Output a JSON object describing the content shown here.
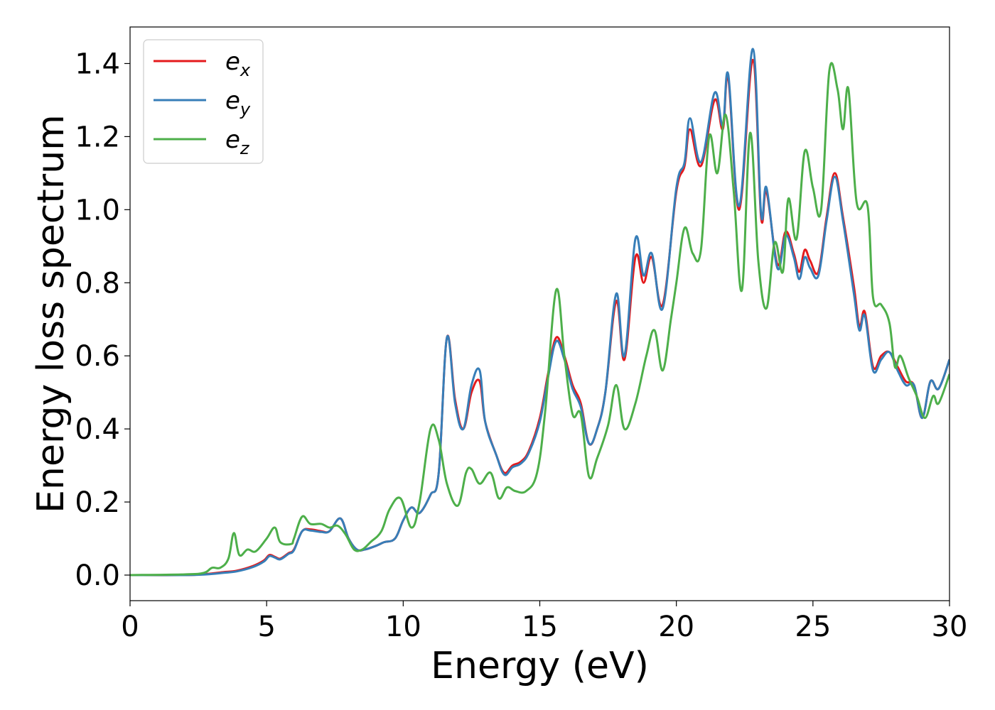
{
  "chart_data": {
    "type": "line",
    "xlabel": "Energy (eV)",
    "ylabel": "Energy loss spectrum",
    "xlim": [
      0,
      30
    ],
    "ylim": [
      -0.07,
      1.5
    ],
    "xticks": [
      0,
      5,
      10,
      15,
      20,
      25,
      30
    ],
    "xtick_labels": [
      "0",
      "5",
      "10",
      "15",
      "20",
      "25",
      "30"
    ],
    "yticks": [
      0.0,
      0.2,
      0.4,
      0.6,
      0.8,
      1.0,
      1.2,
      1.4
    ],
    "ytick_labels": [
      "0.0",
      "0.2",
      "0.4",
      "0.6",
      "0.8",
      "1.0",
      "1.2",
      "1.4"
    ],
    "grid": false,
    "legend_position": "top-left",
    "series": [
      {
        "name": "e",
        "subscript": "x",
        "color": "#e41a1c",
        "points": [
          [
            0,
            0
          ],
          [
            2,
            0
          ],
          [
            2.8,
            0.003
          ],
          [
            3.4,
            0.008
          ],
          [
            3.9,
            0.012
          ],
          [
            4.5,
            0.025
          ],
          [
            4.9,
            0.04
          ],
          [
            5.1,
            0.055
          ],
          [
            5.3,
            0.05
          ],
          [
            5.5,
            0.045
          ],
          [
            5.8,
            0.06
          ],
          [
            6.0,
            0.07
          ],
          [
            6.3,
            0.12
          ],
          [
            6.6,
            0.125
          ],
          [
            7.0,
            0.12
          ],
          [
            7.3,
            0.12
          ],
          [
            7.7,
            0.155
          ],
          [
            8.0,
            0.1
          ],
          [
            8.3,
            0.07
          ],
          [
            8.6,
            0.07
          ],
          [
            9.0,
            0.08
          ],
          [
            9.3,
            0.09
          ],
          [
            9.7,
            0.1
          ],
          [
            10.0,
            0.15
          ],
          [
            10.3,
            0.185
          ],
          [
            10.6,
            0.17
          ],
          [
            11.0,
            0.22
          ],
          [
            11.3,
            0.28
          ],
          [
            11.6,
            0.65
          ],
          [
            11.9,
            0.48
          ],
          [
            12.2,
            0.4
          ],
          [
            12.5,
            0.5
          ],
          [
            12.8,
            0.53
          ],
          [
            13.0,
            0.42
          ],
          [
            13.4,
            0.33
          ],
          [
            13.7,
            0.28
          ],
          [
            14.0,
            0.3
          ],
          [
            14.3,
            0.31
          ],
          [
            14.6,
            0.34
          ],
          [
            15.0,
            0.43
          ],
          [
            15.3,
            0.55
          ],
          [
            15.6,
            0.65
          ],
          [
            15.9,
            0.6
          ],
          [
            16.2,
            0.52
          ],
          [
            16.5,
            0.47
          ],
          [
            16.8,
            0.36
          ],
          [
            17.1,
            0.4
          ],
          [
            17.4,
            0.5
          ],
          [
            17.8,
            0.75
          ],
          [
            18.1,
            0.59
          ],
          [
            18.5,
            0.87
          ],
          [
            18.8,
            0.8
          ],
          [
            19.1,
            0.87
          ],
          [
            19.5,
            0.74
          ],
          [
            20.0,
            1.05
          ],
          [
            20.3,
            1.12
          ],
          [
            20.5,
            1.22
          ],
          [
            20.9,
            1.12
          ],
          [
            21.4,
            1.3
          ],
          [
            21.7,
            1.22
          ],
          [
            21.9,
            1.36
          ],
          [
            22.3,
            1.0
          ],
          [
            22.8,
            1.41
          ],
          [
            23.1,
            0.98
          ],
          [
            23.3,
            1.05
          ],
          [
            23.7,
            0.85
          ],
          [
            24.0,
            0.94
          ],
          [
            24.3,
            0.88
          ],
          [
            24.5,
            0.83
          ],
          [
            24.7,
            0.89
          ],
          [
            24.9,
            0.86
          ],
          [
            25.2,
            0.83
          ],
          [
            25.5,
            0.98
          ],
          [
            25.8,
            1.1
          ],
          [
            26.1,
            0.98
          ],
          [
            26.5,
            0.79
          ],
          [
            26.7,
            0.68
          ],
          [
            26.9,
            0.72
          ],
          [
            27.2,
            0.57
          ],
          [
            27.5,
            0.6
          ],
          [
            27.8,
            0.61
          ],
          [
            28.1,
            0.57
          ],
          [
            28.4,
            0.53
          ],
          [
            28.7,
            0.52
          ],
          [
            29.0,
            0.43
          ],
          [
            29.3,
            0.53
          ],
          [
            29.6,
            0.51
          ],
          [
            30.0,
            0.59
          ]
        ]
      },
      {
        "name": "e",
        "subscript": "y",
        "color": "#377eb8",
        "points": [
          [
            0,
            0
          ],
          [
            2,
            0
          ],
          [
            2.8,
            0.002
          ],
          [
            3.4,
            0.006
          ],
          [
            3.9,
            0.01
          ],
          [
            4.5,
            0.022
          ],
          [
            4.9,
            0.037
          ],
          [
            5.1,
            0.052
          ],
          [
            5.3,
            0.048
          ],
          [
            5.5,
            0.043
          ],
          [
            5.8,
            0.058
          ],
          [
            6.0,
            0.068
          ],
          [
            6.3,
            0.12
          ],
          [
            6.6,
            0.122
          ],
          [
            7.0,
            0.118
          ],
          [
            7.3,
            0.12
          ],
          [
            7.7,
            0.155
          ],
          [
            8.0,
            0.1
          ],
          [
            8.3,
            0.07
          ],
          [
            8.6,
            0.07
          ],
          [
            9.0,
            0.08
          ],
          [
            9.3,
            0.09
          ],
          [
            9.7,
            0.1
          ],
          [
            10.0,
            0.15
          ],
          [
            10.3,
            0.185
          ],
          [
            10.6,
            0.17
          ],
          [
            11.0,
            0.22
          ],
          [
            11.3,
            0.28
          ],
          [
            11.6,
            0.65
          ],
          [
            11.9,
            0.47
          ],
          [
            12.2,
            0.4
          ],
          [
            12.5,
            0.52
          ],
          [
            12.8,
            0.56
          ],
          [
            13.0,
            0.42
          ],
          [
            13.4,
            0.33
          ],
          [
            13.7,
            0.275
          ],
          [
            14.0,
            0.295
          ],
          [
            14.3,
            0.305
          ],
          [
            14.6,
            0.335
          ],
          [
            15.0,
            0.42
          ],
          [
            15.3,
            0.54
          ],
          [
            15.6,
            0.64
          ],
          [
            15.9,
            0.59
          ],
          [
            16.2,
            0.51
          ],
          [
            16.5,
            0.46
          ],
          [
            16.8,
            0.36
          ],
          [
            17.1,
            0.4
          ],
          [
            17.4,
            0.5
          ],
          [
            17.8,
            0.77
          ],
          [
            18.1,
            0.6
          ],
          [
            18.5,
            0.92
          ],
          [
            18.8,
            0.82
          ],
          [
            19.1,
            0.88
          ],
          [
            19.5,
            0.73
          ],
          [
            20.0,
            1.06
          ],
          [
            20.3,
            1.13
          ],
          [
            20.5,
            1.25
          ],
          [
            20.9,
            1.13
          ],
          [
            21.4,
            1.32
          ],
          [
            21.7,
            1.23
          ],
          [
            21.9,
            1.37
          ],
          [
            22.3,
            1.01
          ],
          [
            22.8,
            1.44
          ],
          [
            23.1,
            0.99
          ],
          [
            23.3,
            1.06
          ],
          [
            23.7,
            0.84
          ],
          [
            24.0,
            0.93
          ],
          [
            24.3,
            0.87
          ],
          [
            24.5,
            0.81
          ],
          [
            24.7,
            0.87
          ],
          [
            24.9,
            0.84
          ],
          [
            25.2,
            0.82
          ],
          [
            25.5,
            0.97
          ],
          [
            25.8,
            1.09
          ],
          [
            26.1,
            0.97
          ],
          [
            26.5,
            0.77
          ],
          [
            26.7,
            0.67
          ],
          [
            26.9,
            0.71
          ],
          [
            27.2,
            0.56
          ],
          [
            27.5,
            0.59
          ],
          [
            27.8,
            0.61
          ],
          [
            28.1,
            0.56
          ],
          [
            28.4,
            0.52
          ],
          [
            28.7,
            0.52
          ],
          [
            29.0,
            0.43
          ],
          [
            29.3,
            0.53
          ],
          [
            29.6,
            0.51
          ],
          [
            30.0,
            0.59
          ]
        ]
      },
      {
        "name": "e",
        "subscript": "z",
        "color": "#4daf4a",
        "points": [
          [
            0,
            0
          ],
          [
            2,
            0.002
          ],
          [
            2.7,
            0.006
          ],
          [
            3.0,
            0.02
          ],
          [
            3.3,
            0.02
          ],
          [
            3.6,
            0.045
          ],
          [
            3.8,
            0.115
          ],
          [
            4.0,
            0.055
          ],
          [
            4.3,
            0.07
          ],
          [
            4.6,
            0.065
          ],
          [
            5.0,
            0.1
          ],
          [
            5.3,
            0.13
          ],
          [
            5.5,
            0.09
          ],
          [
            5.9,
            0.085
          ],
          [
            6.0,
            0.1
          ],
          [
            6.3,
            0.16
          ],
          [
            6.6,
            0.14
          ],
          [
            7.0,
            0.14
          ],
          [
            7.3,
            0.13
          ],
          [
            7.6,
            0.135
          ],
          [
            7.9,
            0.11
          ],
          [
            8.2,
            0.07
          ],
          [
            8.5,
            0.07
          ],
          [
            8.8,
            0.09
          ],
          [
            9.2,
            0.12
          ],
          [
            9.5,
            0.18
          ],
          [
            9.9,
            0.21
          ],
          [
            10.3,
            0.13
          ],
          [
            10.6,
            0.2
          ],
          [
            11.0,
            0.4
          ],
          [
            11.3,
            0.37
          ],
          [
            11.6,
            0.25
          ],
          [
            12.0,
            0.19
          ],
          [
            12.3,
            0.28
          ],
          [
            12.5,
            0.29
          ],
          [
            12.8,
            0.25
          ],
          [
            13.2,
            0.28
          ],
          [
            13.5,
            0.21
          ],
          [
            13.8,
            0.24
          ],
          [
            14.1,
            0.23
          ],
          [
            14.5,
            0.23
          ],
          [
            14.9,
            0.28
          ],
          [
            15.2,
            0.45
          ],
          [
            15.6,
            0.78
          ],
          [
            15.9,
            0.6
          ],
          [
            16.2,
            0.44
          ],
          [
            16.5,
            0.44
          ],
          [
            16.8,
            0.27
          ],
          [
            17.1,
            0.32
          ],
          [
            17.5,
            0.41
          ],
          [
            17.8,
            0.52
          ],
          [
            18.1,
            0.4
          ],
          [
            18.5,
            0.47
          ],
          [
            18.9,
            0.6
          ],
          [
            19.2,
            0.67
          ],
          [
            19.5,
            0.56
          ],
          [
            19.8,
            0.7
          ],
          [
            20.0,
            0.8
          ],
          [
            20.3,
            0.95
          ],
          [
            20.6,
            0.88
          ],
          [
            20.9,
            0.89
          ],
          [
            21.2,
            1.2
          ],
          [
            21.5,
            1.1
          ],
          [
            21.8,
            1.26
          ],
          [
            22.1,
            1.05
          ],
          [
            22.4,
            0.78
          ],
          [
            22.7,
            1.21
          ],
          [
            23.0,
            0.86
          ],
          [
            23.3,
            0.73
          ],
          [
            23.6,
            0.91
          ],
          [
            23.9,
            0.83
          ],
          [
            24.1,
            1.03
          ],
          [
            24.4,
            0.92
          ],
          [
            24.7,
            1.16
          ],
          [
            25.0,
            1.06
          ],
          [
            25.3,
            1.0
          ],
          [
            25.6,
            1.38
          ],
          [
            25.9,
            1.33
          ],
          [
            26.1,
            1.22
          ],
          [
            26.3,
            1.33
          ],
          [
            26.6,
            1.02
          ],
          [
            27.0,
            1.01
          ],
          [
            27.2,
            0.76
          ],
          [
            27.5,
            0.74
          ],
          [
            27.8,
            0.69
          ],
          [
            28.0,
            0.57
          ],
          [
            28.2,
            0.6
          ],
          [
            28.5,
            0.54
          ],
          [
            28.8,
            0.49
          ],
          [
            29.1,
            0.43
          ],
          [
            29.4,
            0.49
          ],
          [
            29.6,
            0.47
          ],
          [
            30.0,
            0.55
          ]
        ]
      }
    ]
  }
}
